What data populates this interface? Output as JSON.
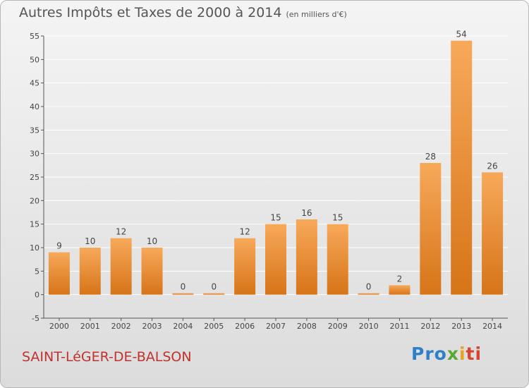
{
  "header": {
    "title": "Autres Impôts et Taxes de 2000 à 2014",
    "unit": "(en milliers d'€)"
  },
  "footer": {
    "place": "SAINT-LéGER-DE-BALSON",
    "logo": [
      "Pro",
      "x",
      "i",
      "ti"
    ]
  },
  "colors": {
    "bar_light": "#f7a95a",
    "bar_dark": "#d77418",
    "grid": "#ffffff",
    "place": "#c0322e"
  },
  "chart_data": {
    "type": "bar",
    "title": "Autres Impôts et Taxes de 2000 à 2014",
    "subtitle": "(en milliers d'€)",
    "categories": [
      "2000",
      "2001",
      "2002",
      "2003",
      "2004",
      "2005",
      "2006",
      "2007",
      "2008",
      "2009",
      "2010",
      "2011",
      "2012",
      "2013",
      "2014"
    ],
    "values": [
      9,
      10,
      12,
      10,
      0,
      0,
      12,
      15,
      16,
      15,
      0,
      2,
      28,
      54,
      26
    ],
    "data_labels": [
      "9",
      "10",
      "12",
      "10",
      "0",
      "0",
      "12",
      "15",
      "16",
      "15",
      "0",
      "2",
      "28",
      "54",
      "26"
    ],
    "ylim": [
      -5,
      55
    ],
    "yticks": [
      -5,
      0,
      5,
      10,
      15,
      20,
      25,
      30,
      35,
      40,
      45,
      50,
      55
    ],
    "ytick_labels": [
      "-5",
      "0",
      "5",
      "10",
      "15",
      "20",
      "25",
      "30",
      "35",
      "40",
      "45",
      "50",
      "55"
    ],
    "grid": true,
    "legend": "none"
  }
}
